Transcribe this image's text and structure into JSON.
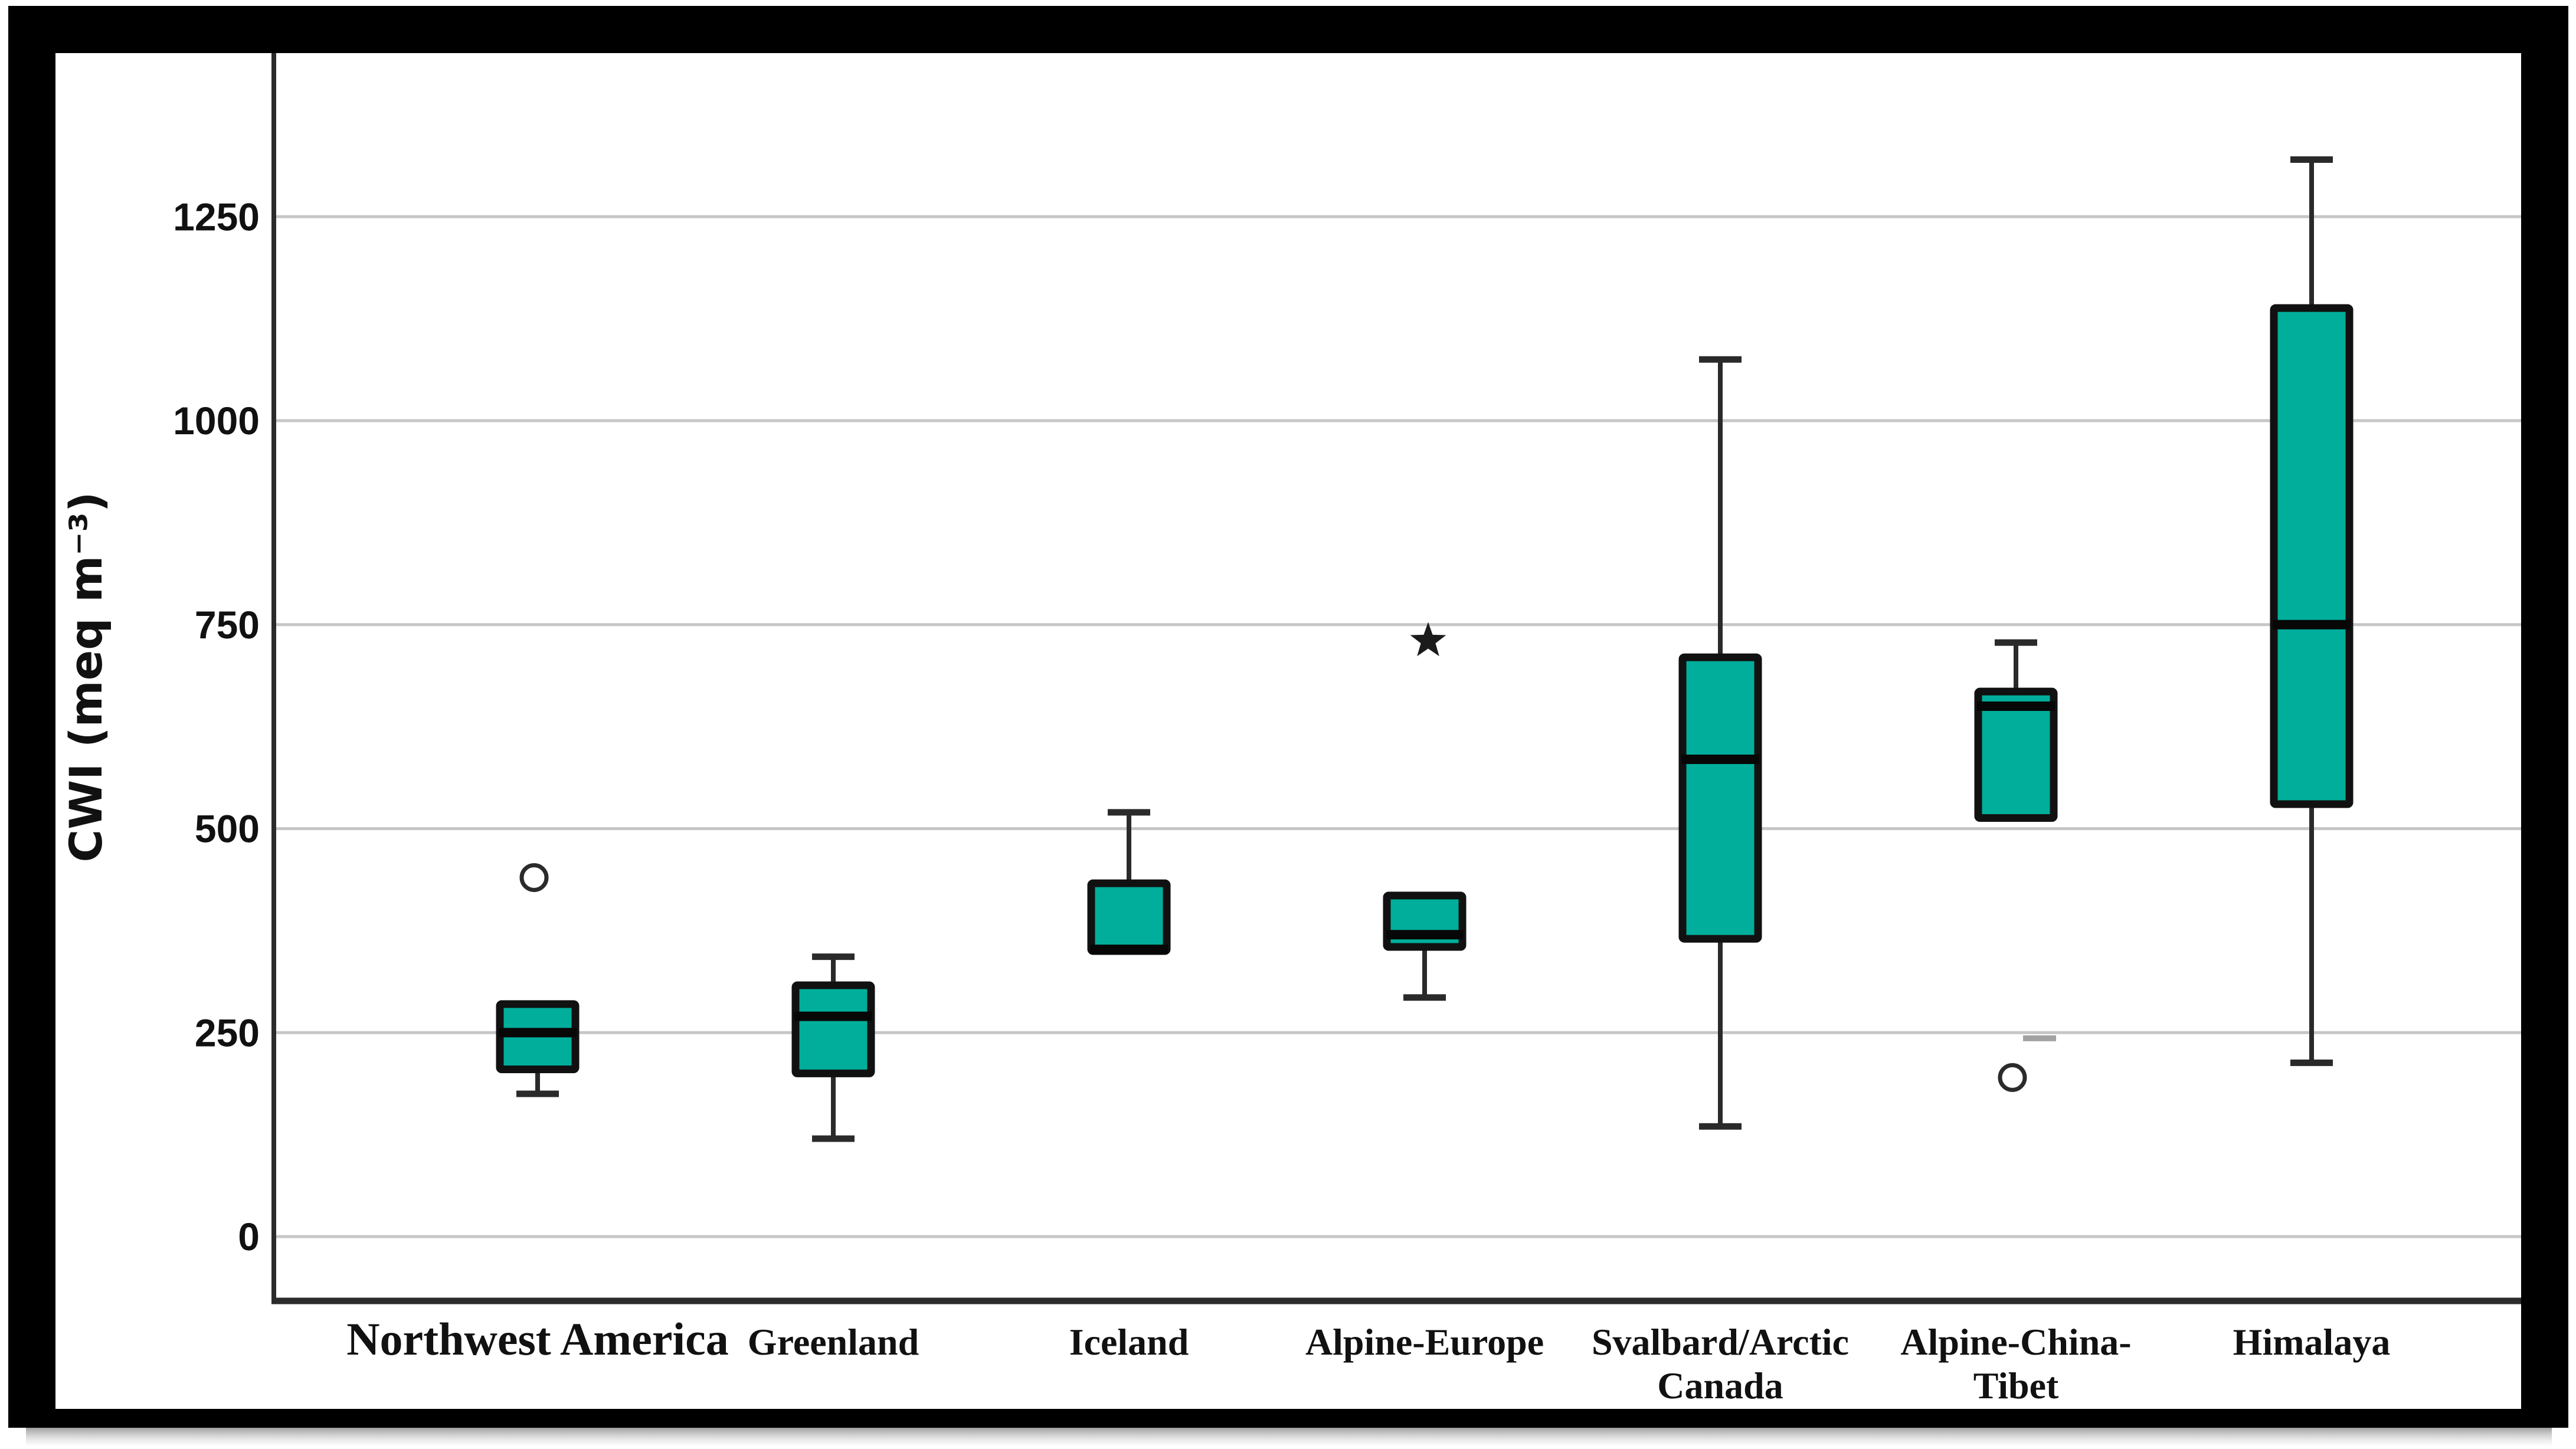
{
  "chart_data": {
    "type": "boxplot",
    "title": "",
    "ylabel": "CWI (meq m⁻³)",
    "xlabel": "",
    "yticks": [
      "0",
      "250",
      "500",
      "750",
      "1000",
      "1250"
    ],
    "ytick_values": [
      0,
      250,
      500,
      750,
      1000,
      1250
    ],
    "ylim": [
      -79,
      1450
    ],
    "grid": true,
    "legend": false,
    "colors": {
      "box_fill": "#00AE9B",
      "box_stroke": "#111111",
      "median": "#070707",
      "whisker": "#2a2a2a",
      "gridline": "#c6c6c6",
      "axis": "#2b2b2b",
      "frame": "#000000",
      "text": "#111111",
      "background": "#ffffff"
    },
    "categories": [
      "Northwest America",
      "Greenland",
      "Iceland",
      "Alpine-Europe",
      "Svalbard/Arctic Canada",
      "Alpine-China-Tibet",
      "Himalaya"
    ],
    "series": [
      {
        "category": "Northwest America",
        "label_lines": [
          "Northwest America"
        ],
        "whisker_low": 175,
        "q1": 205,
        "median": 250,
        "q3": 285,
        "whisker_high": 285,
        "has_upper_whisker": false,
        "has_lower_whisker": true,
        "outliers": [
          {
            "symbol": "circle",
            "value": 440
          }
        ]
      },
      {
        "category": "Greenland",
        "label_lines": [
          "Greenland"
        ],
        "whisker_low": 120,
        "q1": 200,
        "median": 270,
        "q3": 308,
        "whisker_high": 343,
        "has_upper_whisker": true,
        "has_lower_whisker": true,
        "outliers": []
      },
      {
        "category": "Iceland",
        "label_lines": [
          "Iceland"
        ],
        "whisker_low": 350,
        "q1": 350,
        "median": 352,
        "q3": 433,
        "whisker_high": 520,
        "has_upper_whisker": true,
        "has_lower_whisker": false,
        "outliers": []
      },
      {
        "category": "Alpine-Europe",
        "label_lines": [
          "Alpine-Europe"
        ],
        "whisker_low": 293,
        "q1": 355,
        "median": 370,
        "q3": 418,
        "whisker_high": 418,
        "has_upper_whisker": false,
        "has_lower_whisker": true,
        "outliers": [
          {
            "symbol": "star",
            "value": 730
          }
        ]
      },
      {
        "category": "Svalbard/Arctic Canada",
        "label_lines": [
          "Svalbard/Arctic",
          "Canada"
        ],
        "whisker_low": 135,
        "q1": 365,
        "median": 585,
        "q3": 710,
        "whisker_high": 1075,
        "has_upper_whisker": true,
        "has_lower_whisker": true,
        "outliers": []
      },
      {
        "category": "Alpine-China-Tibet",
        "label_lines": [
          "Alpine-China-",
          "Tibet"
        ],
        "whisker_low": 513,
        "q1": 513,
        "median": 650,
        "q3": 668,
        "whisker_high": 728,
        "has_upper_whisker": true,
        "has_lower_whisker": false,
        "outliers": [
          {
            "symbol": "dash",
            "value": 243
          },
          {
            "symbol": "circle",
            "value": 195
          }
        ]
      },
      {
        "category": "Himalaya",
        "label_lines": [
          "Himalaya"
        ],
        "whisker_low": 213,
        "q1": 530,
        "median": 750,
        "q3": 1138,
        "whisker_high": 1320,
        "has_upper_whisker": true,
        "has_lower_whisker": true,
        "outliers": []
      }
    ]
  }
}
